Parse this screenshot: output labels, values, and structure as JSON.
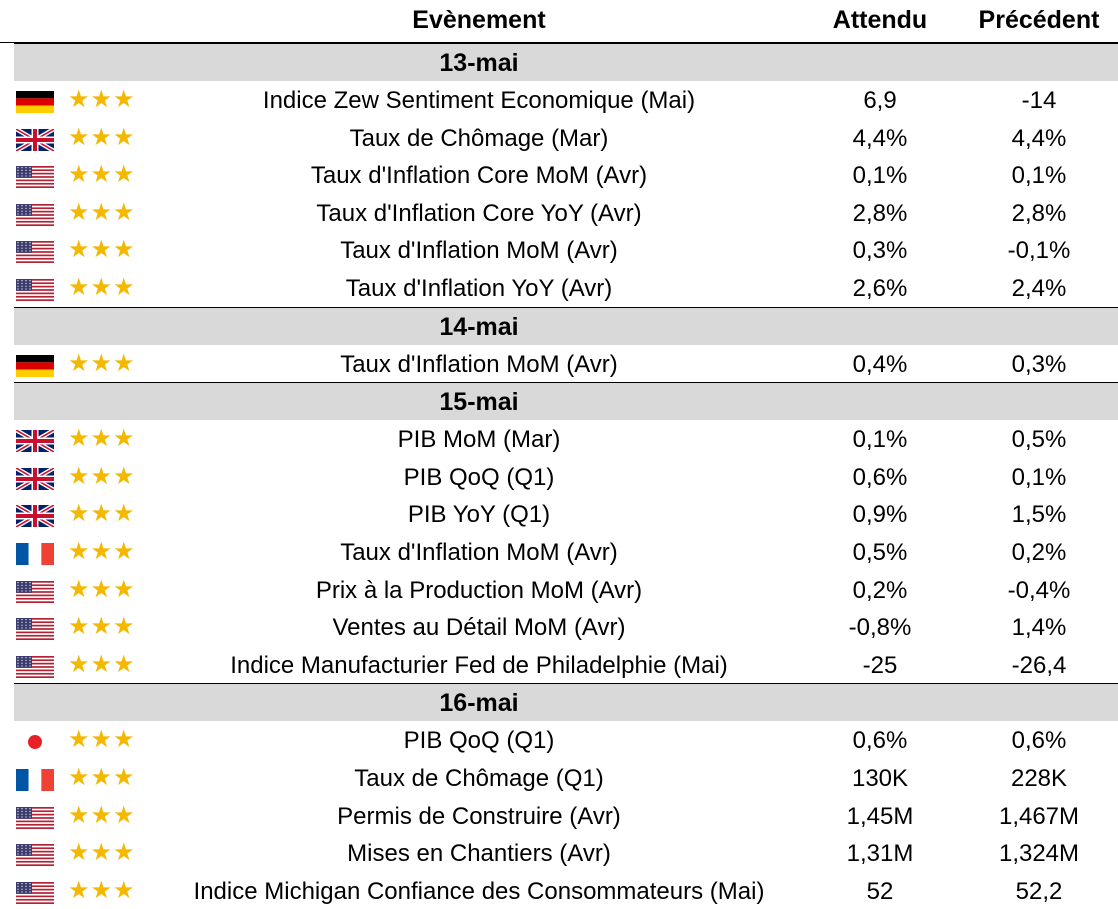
{
  "header": {
    "event": "Evènement",
    "expected": "Attendu",
    "previous": "Précédent"
  },
  "colors": {
    "star": "#f5b800",
    "date_band": "#d9d9d9"
  },
  "groups": [
    {
      "date": "13-mai",
      "rows": [
        {
          "flag": "de-flag-icon",
          "stars": "★★★",
          "event": "Indice Zew Sentiment Economique (Mai)",
          "expected": "6,9",
          "previous": "-14"
        },
        {
          "flag": "gb-flag-icon",
          "stars": "★★★",
          "event": "Taux de Chômage (Mar)",
          "expected": "4,4%",
          "previous": "4,4%"
        },
        {
          "flag": "us-flag-icon",
          "stars": "★★★",
          "event": "Taux d'Inflation Core MoM (Avr)",
          "expected": "0,1%",
          "previous": "0,1%"
        },
        {
          "flag": "us-flag-icon",
          "stars": "★★★",
          "event": "Taux d'Inflation Core YoY (Avr)",
          "expected": "2,8%",
          "previous": "2,8%"
        },
        {
          "flag": "us-flag-icon",
          "stars": "★★★",
          "event": "Taux d'Inflation MoM (Avr)",
          "expected": "0,3%",
          "previous": "-0,1%"
        },
        {
          "flag": "us-flag-icon",
          "stars": "★★★",
          "event": "Taux d'Inflation YoY (Avr)",
          "expected": "2,6%",
          "previous": "2,4%"
        }
      ]
    },
    {
      "date": "14-mai",
      "rows": [
        {
          "flag": "de-flag-icon",
          "stars": "★★★",
          "event": "Taux d'Inflation MoM (Avr)",
          "expected": "0,4%",
          "previous": "0,3%"
        }
      ]
    },
    {
      "date": "15-mai",
      "rows": [
        {
          "flag": "gb-flag-icon",
          "stars": "★★★",
          "event": "PIB MoM (Mar)",
          "expected": "0,1%",
          "previous": "0,5%"
        },
        {
          "flag": "gb-flag-icon",
          "stars": "★★★",
          "event": "PIB QoQ (Q1)",
          "expected": "0,6%",
          "previous": "0,1%"
        },
        {
          "flag": "gb-flag-icon",
          "stars": "★★★",
          "event": "PIB YoY (Q1)",
          "expected": "0,9%",
          "previous": "1,5%"
        },
        {
          "flag": "fr-flag-icon",
          "stars": "★★★",
          "event": "Taux d'Inflation MoM (Avr)",
          "expected": "0,5%",
          "previous": "0,2%"
        },
        {
          "flag": "us-flag-icon",
          "stars": "★★★",
          "event": "Prix à la Production MoM (Avr)",
          "expected": "0,2%",
          "previous": "-0,4%"
        },
        {
          "flag": "us-flag-icon",
          "stars": "★★★",
          "event": "Ventes au Détail MoM (Avr)",
          "expected": "-0,8%",
          "previous": "1,4%"
        },
        {
          "flag": "us-flag-icon",
          "stars": "★★★",
          "event": "Indice Manufacturier Fed de Philadelphie (Mai)",
          "expected": "-25",
          "previous": "-26,4"
        }
      ]
    },
    {
      "date": "16-mai",
      "rows": [
        {
          "flag": "jp-flag-icon",
          "stars": "★★★",
          "event": "PIB QoQ (Q1)",
          "expected": "0,6%",
          "previous": "0,6%"
        },
        {
          "flag": "fr-flag-icon",
          "stars": "★★★",
          "event": "Taux de Chômage (Q1)",
          "expected": "130K",
          "previous": "228K"
        },
        {
          "flag": "us-flag-icon",
          "stars": "★★★",
          "event": "Permis de Construire (Avr)",
          "expected": "1,45M",
          "previous": "1,467M"
        },
        {
          "flag": "us-flag-icon",
          "stars": "★★★",
          "event": "Mises en Chantiers (Avr)",
          "expected": "1,31M",
          "previous": "1,324M"
        },
        {
          "flag": "us-flag-icon",
          "stars": "★★★",
          "event": "Indice Michigan Confiance des Consommateurs (Mai)",
          "expected": "52",
          "previous": "52,2"
        }
      ]
    }
  ]
}
